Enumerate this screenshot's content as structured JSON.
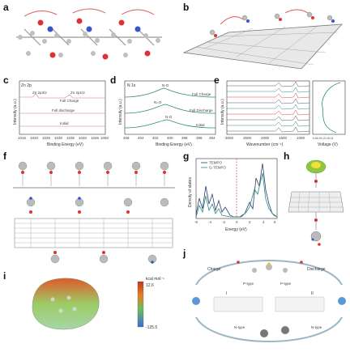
{
  "labels": {
    "a": "a",
    "b": "b",
    "c": "c",
    "d": "d",
    "e": "e",
    "f": "f",
    "g": "g",
    "h": "h",
    "i": "i",
    "j": "j"
  },
  "panel_c": {
    "xlabel": "Binding Energy (eV)",
    "ylabel": "Intensity (a.u.)",
    "peak_label": "Zn 2p",
    "p32": "Zn 2p3/2",
    "p12": "Zn 2p1/2",
    "curves": [
      "Full Charge",
      "Full discharge",
      "Initial"
    ],
    "xticks": [
      "1015",
      "1020",
      "1025",
      "1030",
      "1035",
      "1040",
      "1045",
      "1050"
    ]
  },
  "panel_d": {
    "xlabel": "Binding Energy (eV)",
    "ylabel": "Intensity (a.u.)",
    "title": "N 1s",
    "peaks": [
      "N-O",
      "N=O",
      "N-O"
    ],
    "curves": [
      "Full Charge",
      "Full Discharge",
      "Initial"
    ],
    "xticks": [
      "406",
      "404",
      "402",
      "400",
      "398",
      "396",
      "394"
    ]
  },
  "panel_e": {
    "xlabel": "Wavenumber (cm⁻¹)",
    "ylabel": "Intensity (a.u.)",
    "xticks": [
      "3000",
      "2500",
      "2000",
      "1500",
      "1000"
    ],
    "xlabel2": "Voltage (V)",
    "xticks2": "0.60.91.21.51.8"
  },
  "panel_g": {
    "xlabel": "Energy (eV)",
    "ylabel": "Density of states",
    "legend": [
      "TEMPO",
      "G-TEMPO"
    ],
    "xticks": [
      "-6",
      "-4",
      "-2",
      "0",
      "2",
      "4",
      "6"
    ]
  },
  "panel_i": {
    "unit": "kcal mol⁻¹",
    "max": "12.6",
    "min": "-125.5"
  },
  "panel_j": {
    "charge": "Charge",
    "discharge": "Discharge",
    "ptype": "P-type",
    "ptype2": "P-type",
    "ntype": "N-type",
    "ntype2": "N-type",
    "roman1": "I",
    "roman2": "II"
  },
  "colors": {
    "accent": "#2f6f8f",
    "teal": "#2a8a83",
    "navy": "#2c3e6b",
    "red": "#d44"
  }
}
